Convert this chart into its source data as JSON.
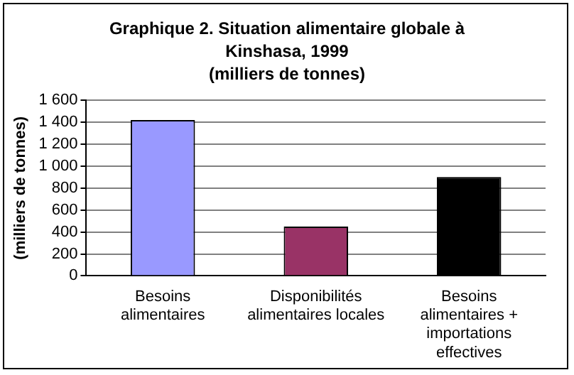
{
  "chart_data": {
    "type": "bar",
    "title": "Graphique 2. Situation alimentaire globale à\nKinshasa, 1999\n(milliers de tonnes)",
    "ylabel": "(milliers de tonnes)",
    "categories": [
      "Besoins\nalimentaires",
      "Disponibilités\nalimentaires locales",
      "Besoins\nalimentaires +\nimportations\neffectives"
    ],
    "values": [
      1420,
      450,
      900
    ],
    "colors": [
      "#9999ff",
      "#993366",
      "#000000"
    ],
    "ylim": [
      0,
      1600
    ],
    "yticks": [
      0,
      200,
      400,
      600,
      800,
      {
        "value": 1000,
        "label": "1 000"
      },
      {
        "value": 1200,
        "label": "1 200"
      },
      {
        "value": 1400,
        "label": "1 400"
      },
      {
        "value": 1600,
        "label": "1 600"
      }
    ],
    "grid": "y"
  }
}
